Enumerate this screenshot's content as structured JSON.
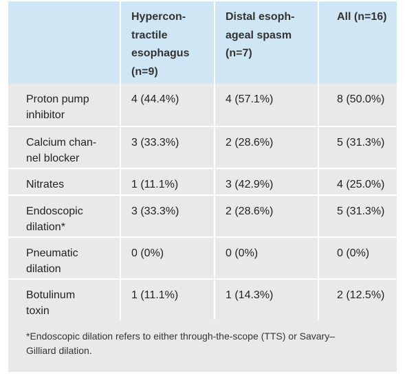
{
  "header": {
    "col0": [],
    "col1": [
      "Hypercon-",
      "tractile",
      "esophagus",
      "(n=9)"
    ],
    "col2": [
      "Distal esoph-",
      "ageal spasm",
      "(n=7)"
    ],
    "col3": [
      "All (n=16)"
    ]
  },
  "rows": [
    {
      "label": [
        "Proton pump",
        "inhibitor"
      ],
      "v1": "4 (44.4%)",
      "v2": "4 (57.1%)",
      "v3": "8 (50.0%)"
    },
    {
      "label": [
        "Calcium chan-",
        "nel blocker"
      ],
      "v1": "3 (33.3%)",
      "v2": "2 (28.6%)",
      "v3": "5 (31.3%)"
    },
    {
      "label": [
        "Nitrates"
      ],
      "v1": "1 (11.1%)",
      "v2": "3 (42.9%)",
      "v3": "4 (25.0%)"
    },
    {
      "label": [
        "Endoscopic",
        "dilation*"
      ],
      "v1": "3 (33.3%)",
      "v2": "2 (28.6%)",
      "v3": "5 (31.3%)"
    },
    {
      "label": [
        "Pneumatic",
        "dilation"
      ],
      "v1": "0 (0%)",
      "v2": "0 (0%)",
      "v3": "0 (0%)"
    },
    {
      "label": [
        "Botulinum",
        "toxin"
      ],
      "v1": "1 (11.1%)",
      "v2": "1 (14.3%)",
      "v3": "2 (12.5%)"
    }
  ],
  "footnote": [
    "*Endoscopic dilation refers to either through-the-scope (TTS) or Savary–",
    "Gilliard dilation."
  ]
}
